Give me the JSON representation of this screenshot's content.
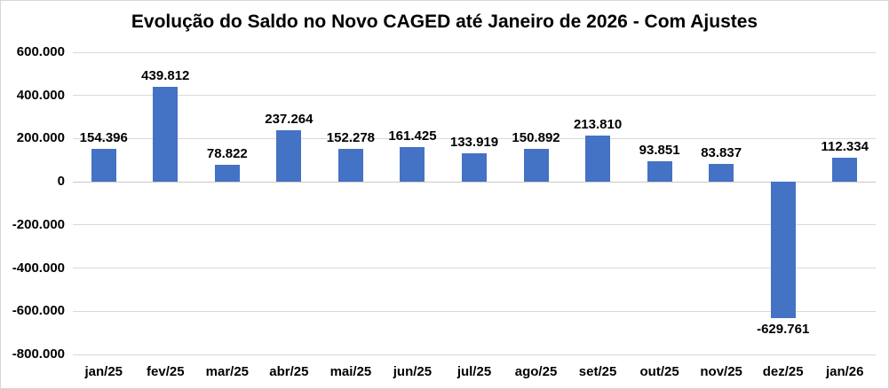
{
  "chart_data": {
    "type": "bar",
    "title": "Evolução do Saldo no Novo CAGED até Janeiro de 2026 - Com Ajustes",
    "categories": [
      "jan/25",
      "fev/25",
      "mar/25",
      "abr/25",
      "mai/25",
      "jun/25",
      "jul/25",
      "ago/25",
      "set/25",
      "out/25",
      "nov/25",
      "dez/25",
      "jan/26"
    ],
    "values": [
      154396,
      439812,
      78822,
      237264,
      152278,
      161425,
      133919,
      150892,
      213810,
      93851,
      83837,
      -629761,
      112334
    ],
    "value_labels": [
      "154.396",
      "439.812",
      "78.822",
      "237.264",
      "152.278",
      "161.425",
      "133.919",
      "150.892",
      "213.810",
      "93.851",
      "83.837",
      "-629.761",
      "112.334"
    ],
    "xlabel": "",
    "ylabel": "",
    "ylim": [
      -800000,
      600000
    ],
    "ytick_step": 200000,
    "ytick_labels": [
      "600.000",
      "400.000",
      "200.000",
      "0",
      "-200.000",
      "-400.000",
      "-600.000",
      "-800.000"
    ],
    "grid": true,
    "legend": false,
    "bar_color": "#4472C4",
    "grid_color": "#d9d9d9",
    "text_color": "#000000",
    "background_color": "#ffffff"
  }
}
